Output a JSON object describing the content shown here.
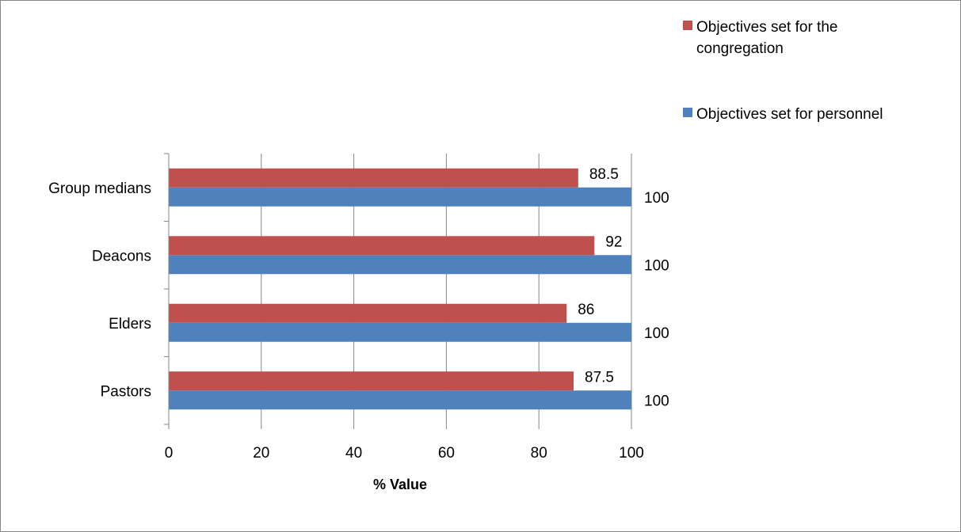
{
  "chart_data": {
    "type": "bar",
    "orientation": "horizontal",
    "categories": [
      "Pastors",
      "Elders",
      "Deacons",
      "Group medians"
    ],
    "series": [
      {
        "name": "Objectives set for personnel",
        "values": [
          100,
          100,
          100,
          100
        ],
        "color": "#4f81bd"
      },
      {
        "name": "Objectives set for the congregation",
        "values": [
          87.5,
          86,
          92,
          88.5
        ],
        "color": "#c0504d"
      }
    ],
    "xlabel": "% Value",
    "ylabel": "",
    "xlim": [
      0,
      100
    ],
    "x_ticks": [
      "0",
      "20",
      "40",
      "60",
      "80",
      "100"
    ],
    "data_labels": true,
    "grid": "vertical",
    "legend_position": "top-right",
    "legend_order": [
      1,
      0
    ]
  }
}
